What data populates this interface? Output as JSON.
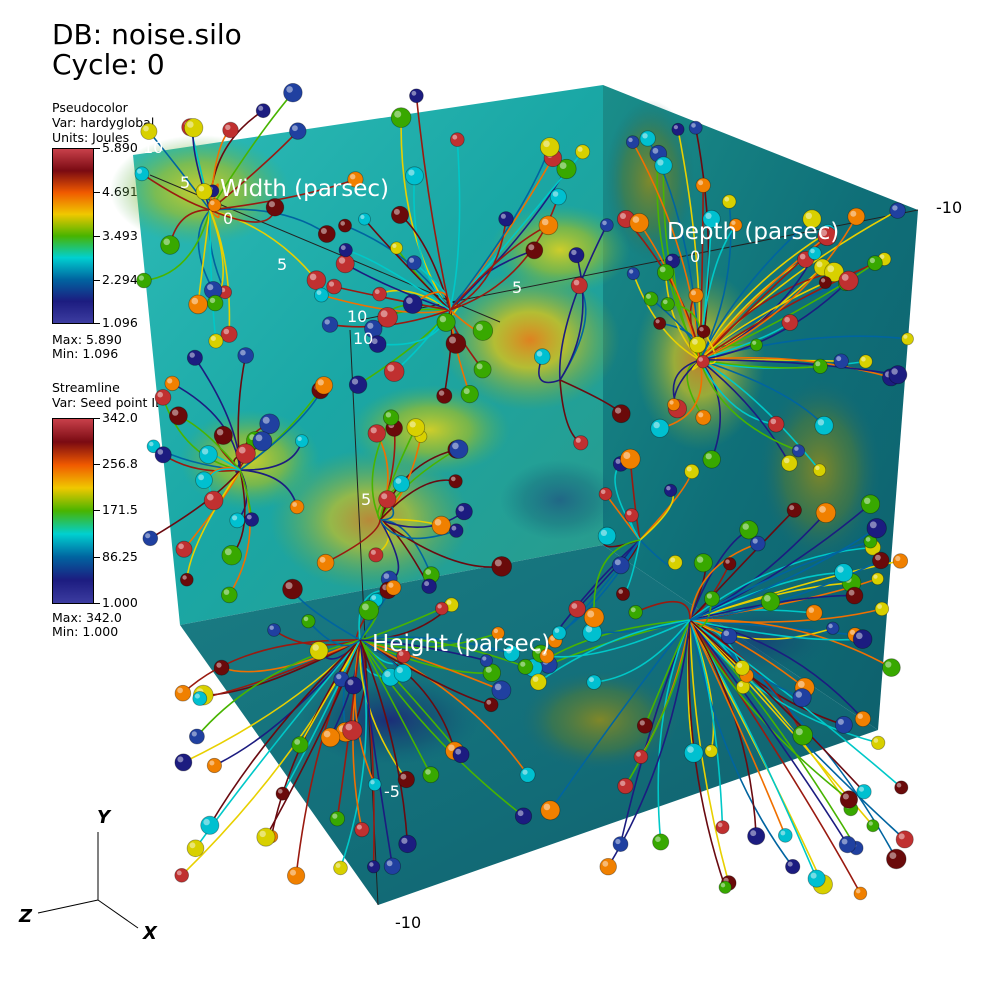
{
  "header": {
    "db": "DB: noise.silo",
    "cycle": "Cycle: 0"
  },
  "pseudocolor": {
    "title": "Pseudocolor",
    "var": "Var: hardyglobal",
    "units": "Units: Joules",
    "ticks": [
      "5.890",
      "4.691",
      "3.493",
      "2.294",
      "1.096"
    ],
    "max": "Max:  5.890",
    "min": "Min:  1.096"
  },
  "streamline": {
    "title": "Streamline",
    "var": "Var: Seed point ID",
    "ticks": [
      "342.0",
      "256.8",
      "171.5",
      "86.25",
      "1.000"
    ],
    "max": "Max:  342.0",
    "min": "Min:  1.000"
  },
  "axes": {
    "width_title": "Width (parsec)",
    "depth_title": "Depth (parsec)",
    "height_title": "Height (parsec)",
    "width_ticks": [
      "10",
      "5",
      "0",
      "5",
      "10"
    ],
    "depth_ticks": [
      "5",
      "0"
    ],
    "height_ticks": [
      "10",
      "5",
      "-5"
    ],
    "corner_right": "-10",
    "corner_bottom": "-10"
  },
  "triad": {
    "x": "X",
    "y": "Y",
    "z": "Z"
  },
  "colors": {
    "rainbow": [
      "#c8404a",
      "#7a0a12",
      "#f05a00",
      "#f0c800",
      "#48b400",
      "#00d0d0",
      "#0064a0",
      "#1c1c80",
      "#3c3ca0"
    ]
  }
}
